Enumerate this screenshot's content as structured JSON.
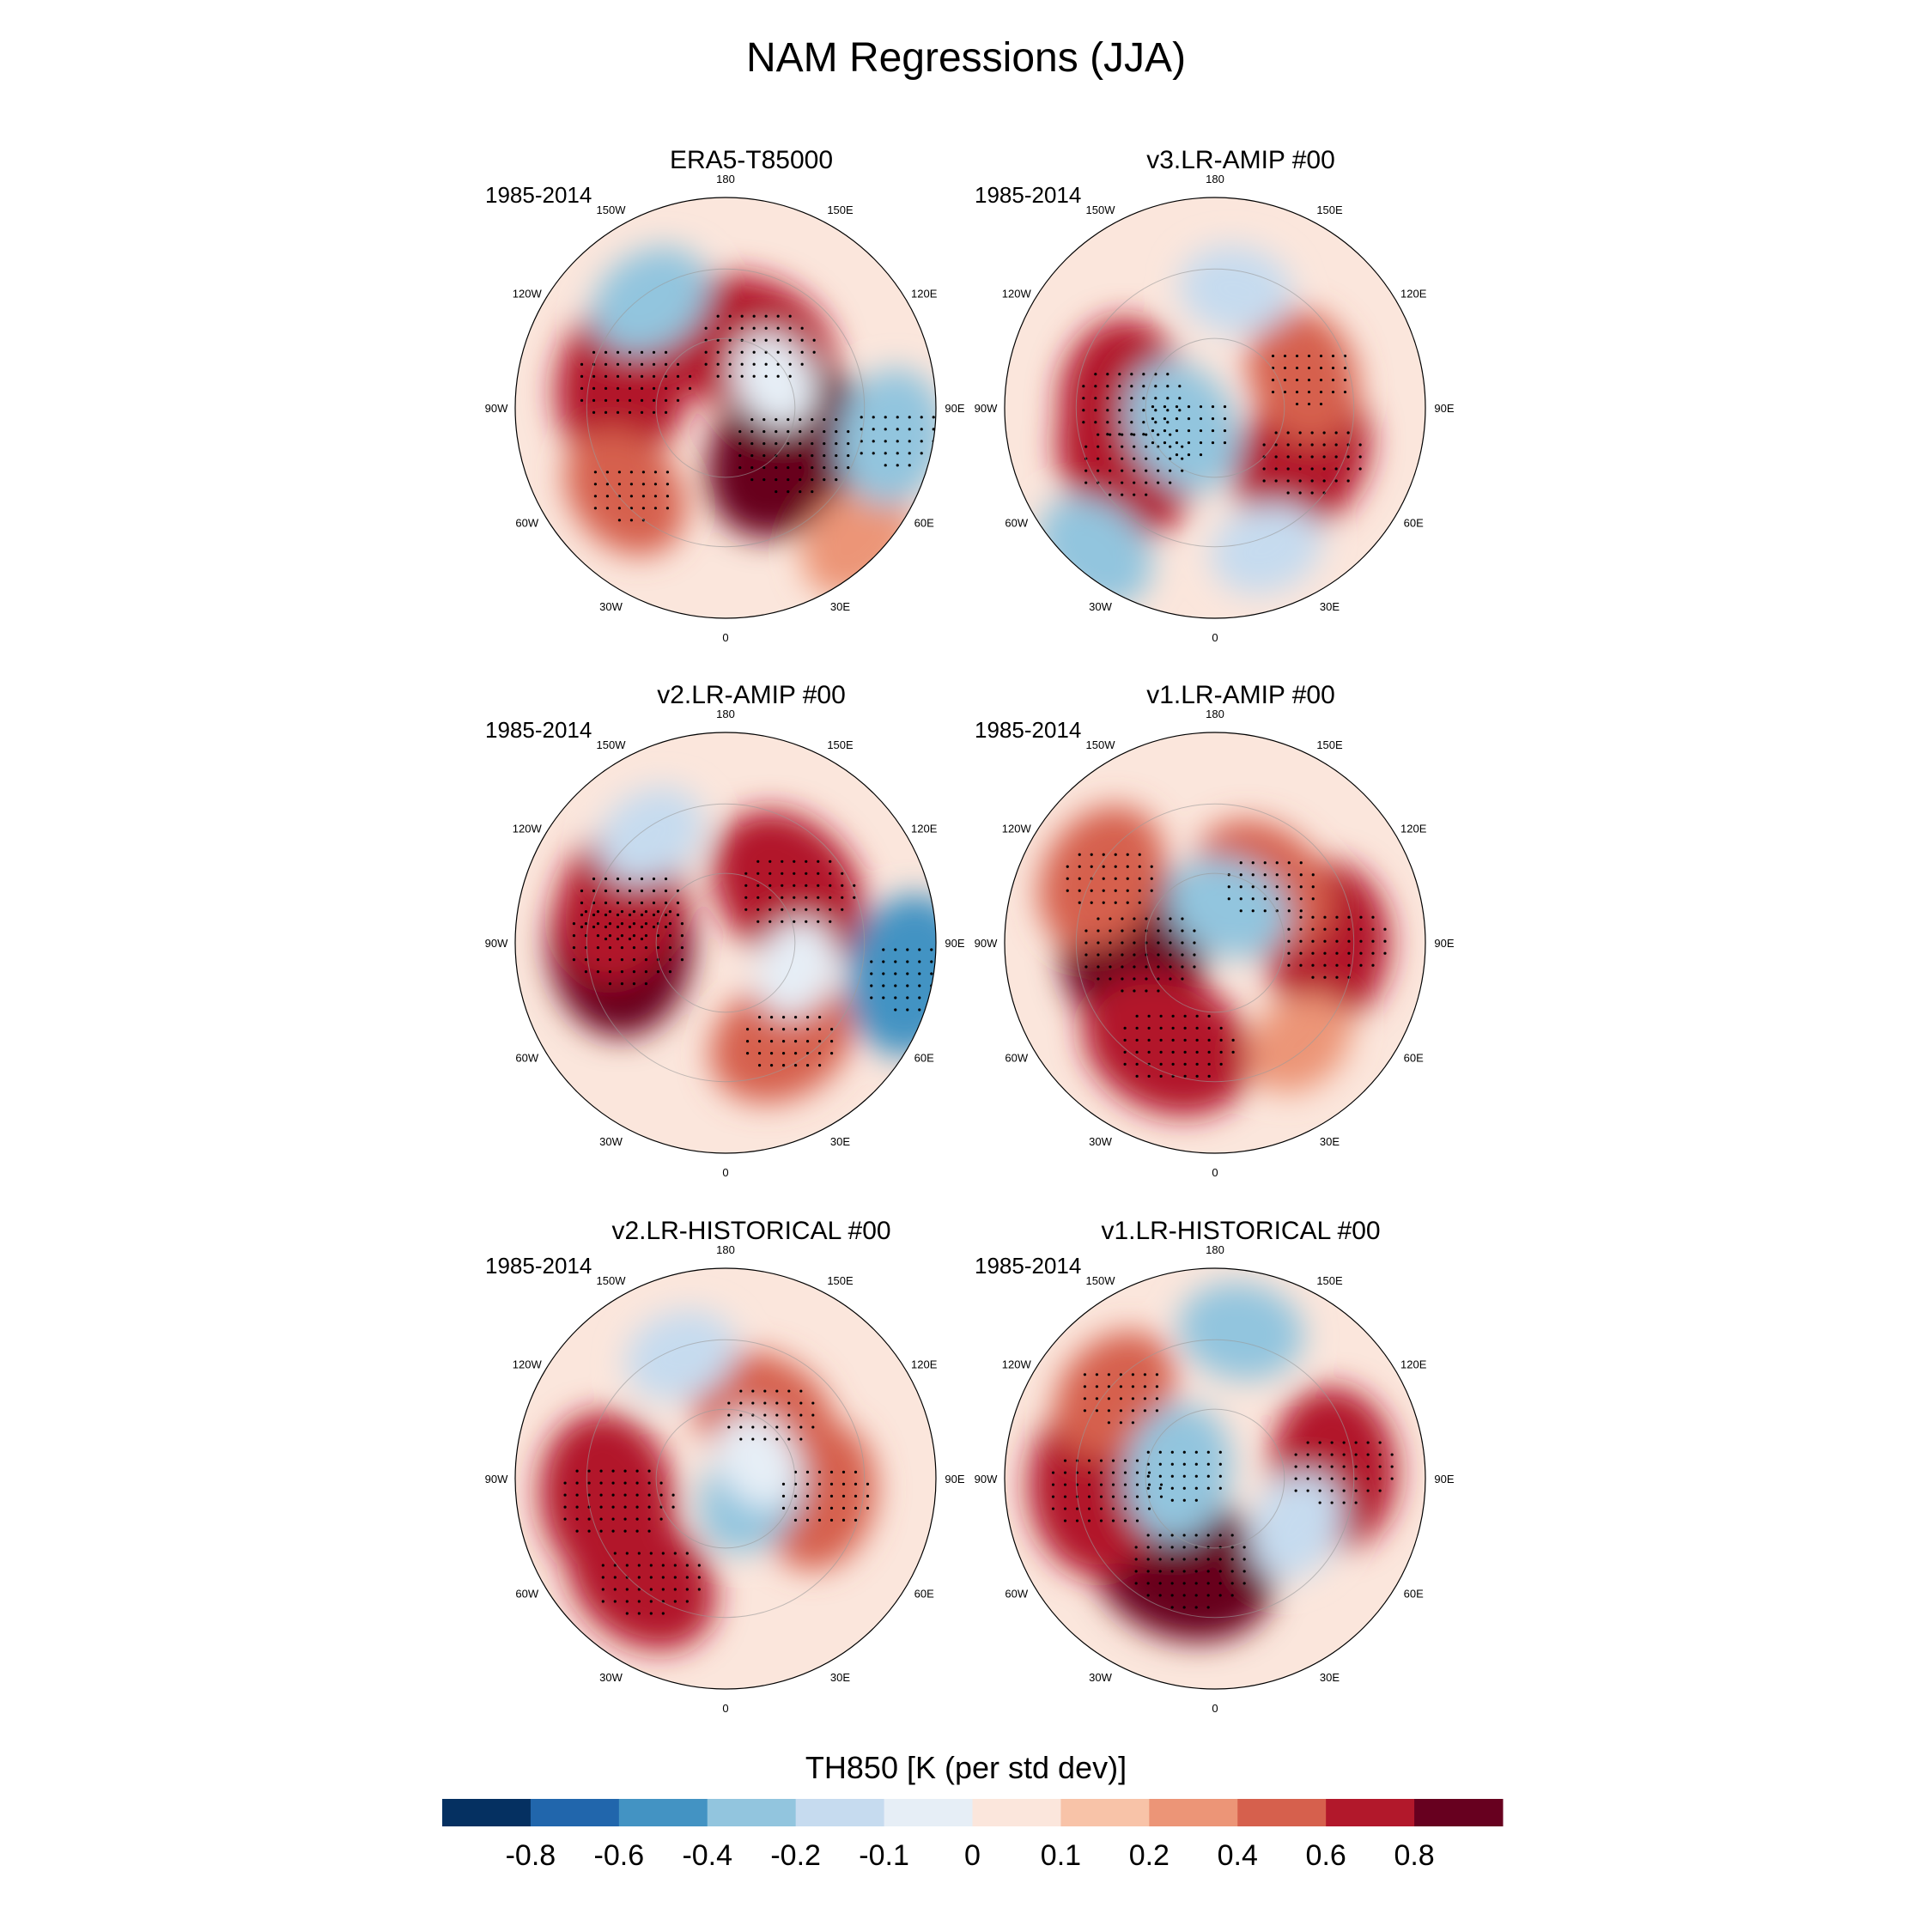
{
  "title": "NAM Regressions (JJA)",
  "panels": [
    {
      "name": "ERA5-T85000",
      "period": "1985-2014"
    },
    {
      "name": "v3.LR-AMIP  #00",
      "period": "1985-2014"
    },
    {
      "name": "v2.LR-AMIP  #00",
      "period": "1985-2014"
    },
    {
      "name": "v1.LR-AMIP  #00",
      "period": "1985-2014"
    },
    {
      "name": "v2.LR-HISTORICAL  #00",
      "period": "1985-2014"
    },
    {
      "name": "v1.LR-HISTORICAL  #00",
      "period": "1985-2014"
    }
  ],
  "lon_labels": [
    "180",
    "150E",
    "120E",
    "90E",
    "60E",
    "30E",
    "0",
    "30W",
    "60W",
    "90W",
    "120W",
    "150W"
  ],
  "colorbar": {
    "title": "TH850 [K (per std dev)]",
    "ticks": [
      "-0.8",
      "-0.6",
      "-0.4",
      "-0.2",
      "-0.1",
      "0",
      "0.1",
      "0.2",
      "0.4",
      "0.6",
      "0.8"
    ],
    "colors": [
      "#053061",
      "#2166ac",
      "#4393c3",
      "#92c5de",
      "#c6dbef",
      "#e6eef6",
      "#fbe6dc",
      "#f8c3a8",
      "#ec9577",
      "#d6604d",
      "#b2182b",
      "#67001f"
    ]
  },
  "chart_data": {
    "type": "polar-stereographic-map",
    "title": "NAM Regressions (JJA)",
    "variable": "TH850 [K (per std dev)]",
    "period": "1985-2014",
    "projection": "north-polar, 0 at bottom, 180 at top",
    "contour_levels": [
      -0.8,
      -0.6,
      -0.4,
      -0.2,
      -0.1,
      0,
      0.1,
      0.2,
      0.4,
      0.6,
      0.8
    ],
    "panels": [
      {
        "name": "ERA5-T85000",
        "features": [
          {
            "lon": -105,
            "lat": 62,
            "value": 0.7
          },
          {
            "lon": 160,
            "lat": 72,
            "value": 0.7
          },
          {
            "lon": 55,
            "lat": 70,
            "value": 0.8
          },
          {
            "lon": -145,
            "lat": 55,
            "value": -0.3
          },
          {
            "lon": 45,
            "lat": 40,
            "value": 0.3
          },
          {
            "lon": 80,
            "lat": 45,
            "value": -0.4
          },
          {
            "lon": -50,
            "lat": 55,
            "value": 0.4
          },
          {
            "lon": 120,
            "lat": 75,
            "value": -0.1
          }
        ]
      },
      {
        "name": "v3.LR-AMIP  #00",
        "features": [
          {
            "lon": -95,
            "lat": 65,
            "value": 0.6
          },
          {
            "lon": -60,
            "lat": 62,
            "value": 0.6
          },
          {
            "lon": 60,
            "lat": 63,
            "value": 0.6
          },
          {
            "lon": 110,
            "lat": 65,
            "value": 0.4
          },
          {
            "lon": -60,
            "lat": 80,
            "value": -0.4
          },
          {
            "lon": -40,
            "lat": 40,
            "value": -0.3
          },
          {
            "lon": 20,
            "lat": 50,
            "value": -0.2
          },
          {
            "lon": 170,
            "lat": 58,
            "value": -0.2
          }
        ]
      },
      {
        "name": "v2.LR-AMIP  #00",
        "features": [
          {
            "lon": -90,
            "lat": 62,
            "value": 0.8
          },
          {
            "lon": -110,
            "lat": 60,
            "value": 0.6
          },
          {
            "lon": 130,
            "lat": 68,
            "value": 0.7
          },
          {
            "lon": 30,
            "lat": 60,
            "value": 0.5
          },
          {
            "lon": 80,
            "lat": 40,
            "value": -0.6
          },
          {
            "lon": -145,
            "lat": 55,
            "value": -0.2
          },
          {
            "lon": 70,
            "lat": 70,
            "value": -0.1
          }
        ]
      },
      {
        "name": "v1.LR-AMIP  #00",
        "features": [
          {
            "lon": -85,
            "lat": 68,
            "value": 0.8
          },
          {
            "lon": -25,
            "lat": 60,
            "value": 0.7
          },
          {
            "lon": 90,
            "lat": 60,
            "value": 0.6
          },
          {
            "lon": -120,
            "lat": 55,
            "value": 0.5
          },
          {
            "lon": 140,
            "lat": 70,
            "value": 0.5
          },
          {
            "lon": 160,
            "lat": 80,
            "value": -0.3
          },
          {
            "lon": 40,
            "lat": 55,
            "value": 0.2
          }
        ]
      },
      {
        "name": "v2.LR-HISTORICAL  #00",
        "features": [
          {
            "lon": -80,
            "lat": 58,
            "value": 0.7
          },
          {
            "lon": -40,
            "lat": 55,
            "value": 0.6
          },
          {
            "lon": 150,
            "lat": 70,
            "value": 0.5
          },
          {
            "lon": 80,
            "lat": 65,
            "value": 0.5
          },
          {
            "lon": 60,
            "lat": 82,
            "value": -0.3
          },
          {
            "lon": -160,
            "lat": 55,
            "value": -0.2
          },
          {
            "lon": 120,
            "lat": 80,
            "value": -0.1
          }
        ]
      },
      {
        "name": "v1.LR-HISTORICAL  #00",
        "features": [
          {
            "lon": -20,
            "lat": 65,
            "value": 0.8
          },
          {
            "lon": -85,
            "lat": 58,
            "value": 0.7
          },
          {
            "lon": 95,
            "lat": 58,
            "value": 0.6
          },
          {
            "lon": -130,
            "lat": 55,
            "value": 0.4
          },
          {
            "lon": -100,
            "lat": 80,
            "value": -0.4
          },
          {
            "lon": 170,
            "lat": 50,
            "value": -0.3
          },
          {
            "lon": 60,
            "lat": 65,
            "value": -0.2
          }
        ]
      }
    ]
  }
}
